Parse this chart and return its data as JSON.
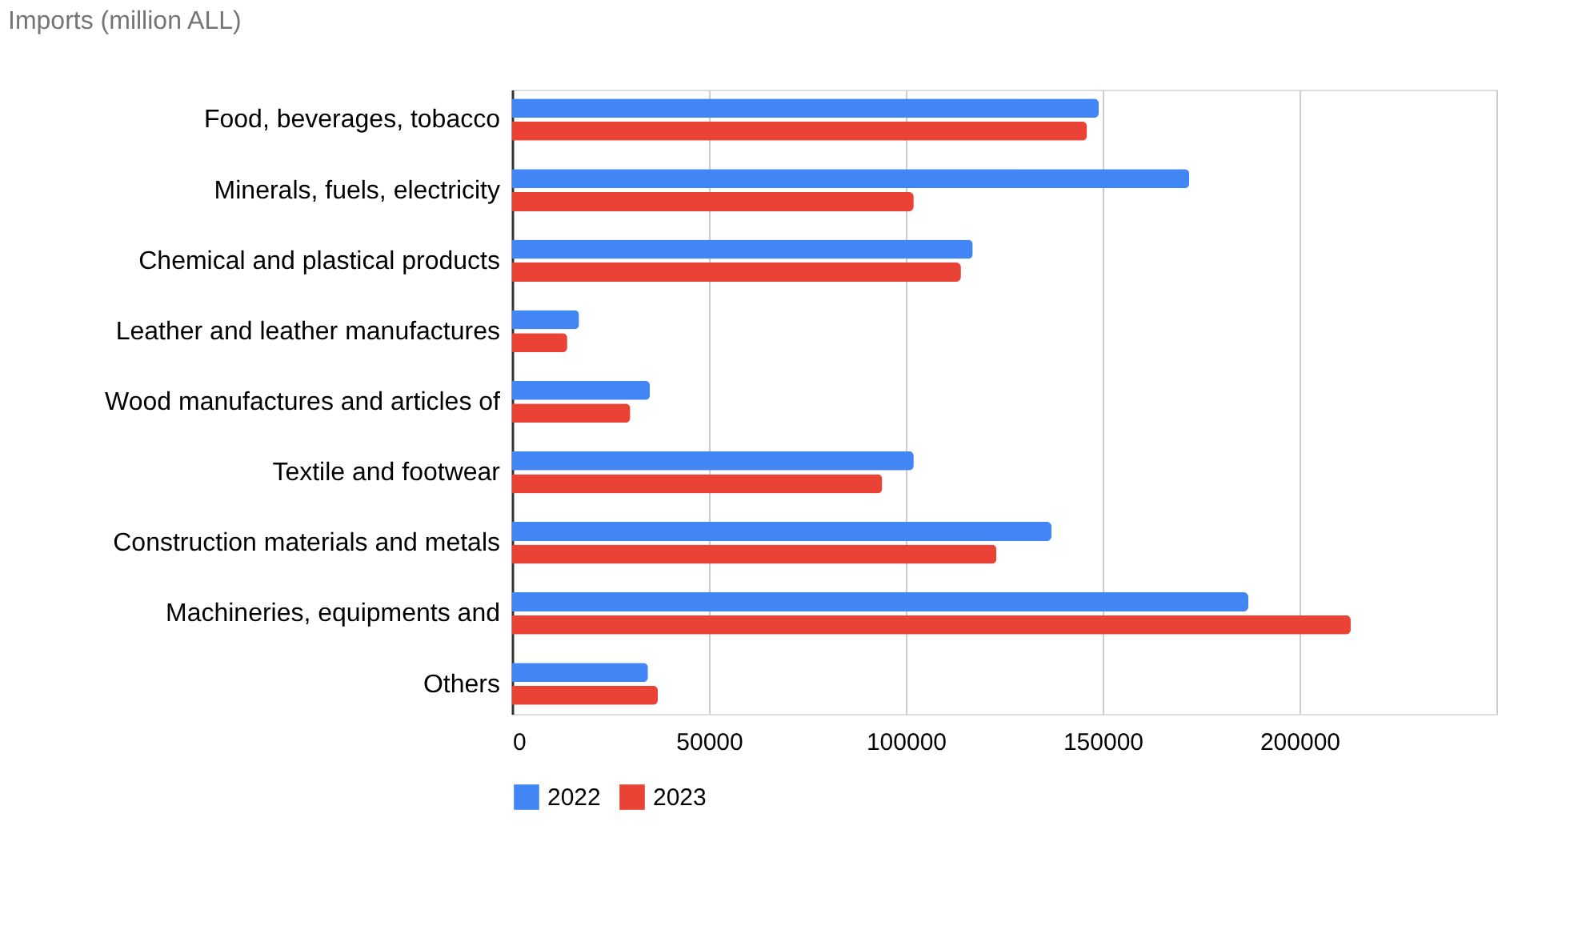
{
  "chart_data": {
    "type": "bar",
    "orientation": "horizontal",
    "title": "Imports (million ALL)",
    "categories": [
      "Food, beverages, tobacco",
      "Minerals, fuels, electricity",
      "Chemical and plastical products",
      "Leather and leather manufactures",
      "Wood manufactures and articles of",
      "Textile and footwear",
      "Construction materials and metals",
      "Machineries, equipments and",
      "Others"
    ],
    "series": [
      {
        "name": "2022",
        "color": "#4285f4",
        "values": [
          149000,
          172000,
          117000,
          17000,
          35000,
          102000,
          137000,
          187000,
          34500
        ]
      },
      {
        "name": "2023",
        "color": "#ea4335",
        "values": [
          146000,
          102000,
          114000,
          14000,
          30000,
          94000,
          123000,
          213000,
          37000
        ]
      }
    ],
    "xlim": [
      0,
      250000
    ],
    "xticks": [
      0,
      50000,
      100000,
      150000,
      200000,
      {
        "value": 250000,
        "label": null
      }
    ],
    "grid": "x",
    "legend": "bottom"
  }
}
